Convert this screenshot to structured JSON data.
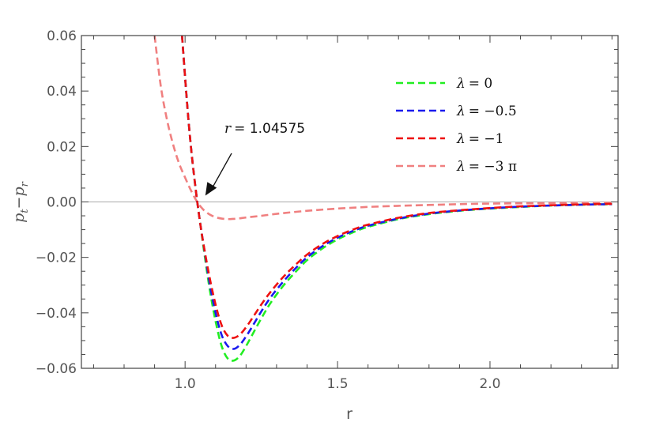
{
  "chart_data": {
    "type": "line",
    "title": "",
    "xlabel": "r",
    "ylabel_parts": {
      "p": "p",
      "t": "t",
      "minus": "−",
      "r": "r"
    },
    "xlim": [
      0.66,
      2.42
    ],
    "ylim": [
      -0.06,
      0.06
    ],
    "x_ticks": [
      1.0,
      1.5,
      2.0
    ],
    "x_tick_labels": [
      "1.0",
      "1.5",
      "2.0"
    ],
    "y_ticks": [
      -0.06,
      -0.04,
      -0.02,
      0.0,
      0.02,
      0.04,
      0.06
    ],
    "y_tick_labels": [
      "−0.06",
      "−0.04",
      "−0.02",
      "0.00",
      "0.02",
      "0.04",
      "0.06"
    ],
    "legend_position": "top-right",
    "series": [
      {
        "name": "λ = 0",
        "color": "#22ee22",
        "x": [
          0.99,
          1.0,
          1.01,
          1.02,
          1.03,
          1.04,
          1.05,
          1.06,
          1.08,
          1.1,
          1.12,
          1.14,
          1.16,
          1.18,
          1.2,
          1.22,
          1.25,
          1.28,
          1.32,
          1.36,
          1.4,
          1.45,
          1.5,
          1.55,
          1.6,
          1.7,
          1.8,
          1.9,
          2.0,
          2.1,
          2.2,
          2.3,
          2.4
        ],
        "y": [
          0.06,
          0.045,
          0.031,
          0.019,
          0.009,
          0.0,
          -0.008,
          -0.016,
          -0.031,
          -0.043,
          -0.052,
          -0.0565,
          -0.0572,
          -0.0555,
          -0.052,
          -0.048,
          -0.042,
          -0.0365,
          -0.0305,
          -0.0255,
          -0.021,
          -0.0168,
          -0.0135,
          -0.011,
          -0.009,
          -0.0062,
          -0.0044,
          -0.0032,
          -0.0024,
          -0.0018,
          -0.0013,
          -0.001,
          -0.0008
        ]
      },
      {
        "name": "λ = −0.5",
        "color": "#1a1aee",
        "x": [
          0.99,
          1.0,
          1.01,
          1.02,
          1.03,
          1.04,
          1.05,
          1.06,
          1.08,
          1.1,
          1.12,
          1.14,
          1.16,
          1.18,
          1.2,
          1.22,
          1.25,
          1.28,
          1.32,
          1.36,
          1.4,
          1.45,
          1.5,
          1.55,
          1.6,
          1.7,
          1.8,
          1.9,
          2.0,
          2.1,
          2.2,
          2.3,
          2.4
        ],
        "y": [
          0.06,
          0.045,
          0.031,
          0.019,
          0.009,
          0.0,
          -0.008,
          -0.015,
          -0.029,
          -0.04,
          -0.048,
          -0.052,
          -0.053,
          -0.0515,
          -0.0485,
          -0.045,
          -0.0395,
          -0.0345,
          -0.029,
          -0.0242,
          -0.02,
          -0.016,
          -0.0129,
          -0.0105,
          -0.0086,
          -0.006,
          -0.0042,
          -0.0031,
          -0.0023,
          -0.0017,
          -0.0013,
          -0.001,
          -0.0008
        ]
      },
      {
        "name": "λ = −1",
        "color": "#ee1111",
        "x": [
          0.99,
          1.0,
          1.01,
          1.02,
          1.03,
          1.04,
          1.05,
          1.06,
          1.08,
          1.1,
          1.12,
          1.14,
          1.16,
          1.18,
          1.2,
          1.22,
          1.25,
          1.28,
          1.32,
          1.36,
          1.4,
          1.45,
          1.5,
          1.55,
          1.6,
          1.7,
          1.8,
          1.9,
          2.0,
          2.1,
          2.2,
          2.3,
          2.4
        ],
        "y": [
          0.06,
          0.045,
          0.031,
          0.019,
          0.009,
          0.0,
          -0.008,
          -0.015,
          -0.027,
          -0.037,
          -0.0445,
          -0.0483,
          -0.049,
          -0.0478,
          -0.0452,
          -0.042,
          -0.037,
          -0.0325,
          -0.0273,
          -0.0229,
          -0.019,
          -0.0152,
          -0.0123,
          -0.01,
          -0.0082,
          -0.0057,
          -0.004,
          -0.003,
          -0.0022,
          -0.0016,
          -0.0012,
          -0.0009,
          -0.0007
        ]
      },
      {
        "name": "λ = −3 π",
        "color": "#f08080",
        "x": [
          0.9,
          0.92,
          0.94,
          0.96,
          0.98,
          1.0,
          1.02,
          1.04,
          1.06,
          1.08,
          1.1,
          1.12,
          1.14,
          1.16,
          1.18,
          1.2,
          1.25,
          1.3,
          1.4,
          1.5,
          1.6,
          1.7,
          1.8,
          1.9,
          2.0,
          2.1,
          2.2,
          2.3,
          2.4
        ],
        "y": [
          0.06,
          0.042,
          0.03,
          0.021,
          0.014,
          0.0088,
          0.004,
          0.0,
          -0.0028,
          -0.0045,
          -0.0055,
          -0.006,
          -0.0062,
          -0.0061,
          -0.0059,
          -0.0056,
          -0.005,
          -0.0043,
          -0.0032,
          -0.0024,
          -0.0018,
          -0.0014,
          -0.0011,
          -0.0008,
          -0.0006,
          -0.0005,
          -0.0004,
          -0.0003,
          -0.0003
        ]
      }
    ],
    "legend": [
      {
        "lambda": "λ",
        "label": "= 0",
        "color": "#22ee22"
      },
      {
        "lambda": "λ",
        "label": "= −0.5",
        "color": "#1a1aee"
      },
      {
        "lambda": "λ",
        "label": "= −1",
        "color": "#ee1111"
      },
      {
        "lambda": "λ",
        "label": "= −3 π",
        "color": "#f08080"
      }
    ],
    "annotation": {
      "r_symbol": "r",
      "text": "= 1.04575",
      "point": [
        1.04575,
        0.0
      ]
    }
  }
}
